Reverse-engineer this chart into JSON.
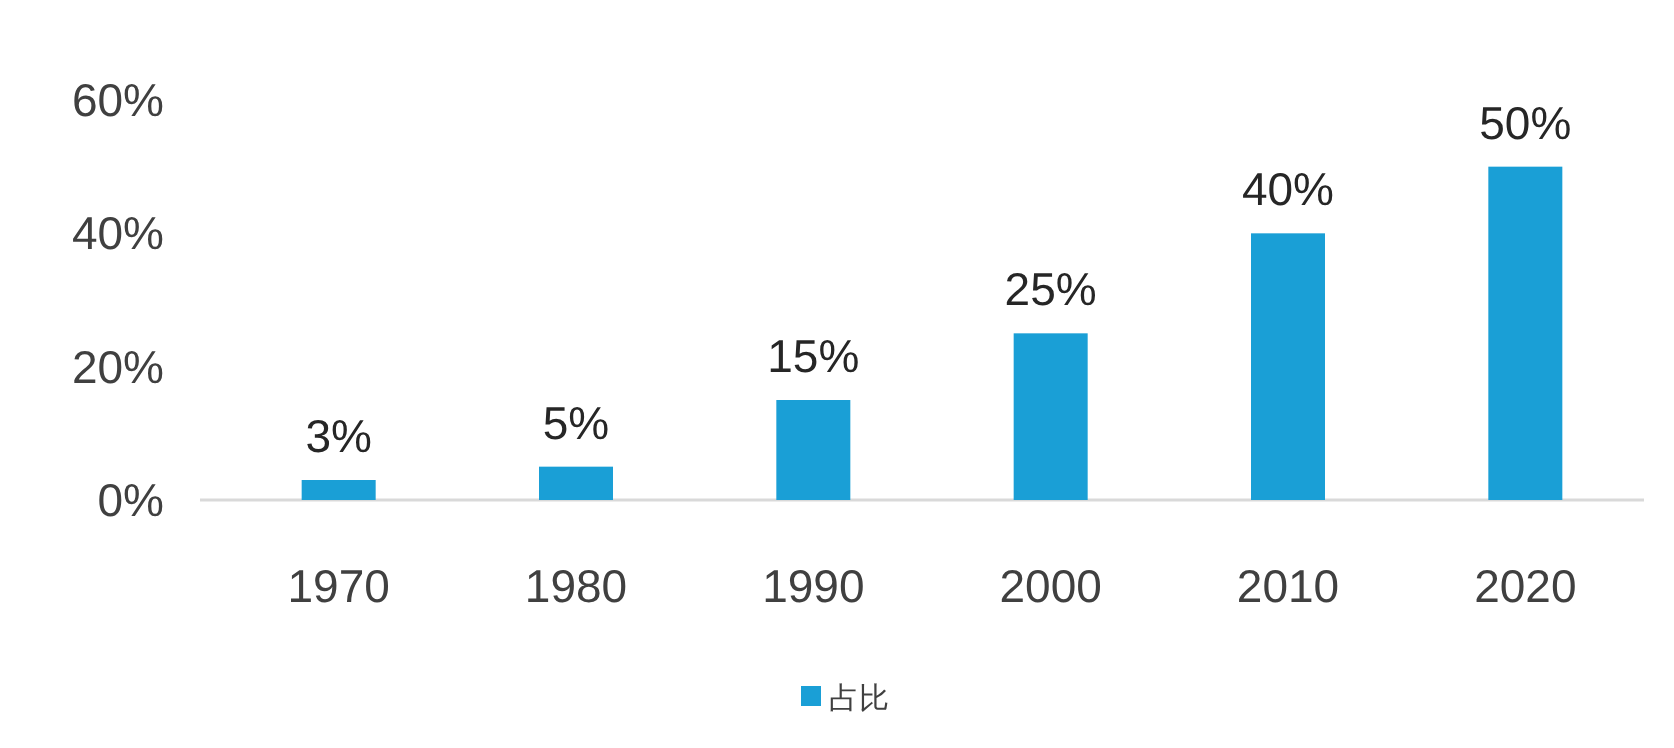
{
  "chart_data": {
    "type": "bar",
    "categories": [
      "1970",
      "1980",
      "1990",
      "2000",
      "2010",
      "2020"
    ],
    "series": [
      {
        "name": "占比",
        "color": "#1a9fd6",
        "values": [
          3,
          5,
          15,
          25,
          40,
          50
        ],
        "value_labels": [
          "3%",
          "5%",
          "15%",
          "25%",
          "40%",
          "50%"
        ]
      }
    ],
    "ylim": [
      0,
      60
    ],
    "yticks": [
      {
        "value": 0,
        "label": "0%"
      },
      {
        "value": 20,
        "label": "20%"
      },
      {
        "value": 40,
        "label": "40%"
      },
      {
        "value": 60,
        "label": "60%"
      }
    ],
    "legend": "bottom"
  }
}
